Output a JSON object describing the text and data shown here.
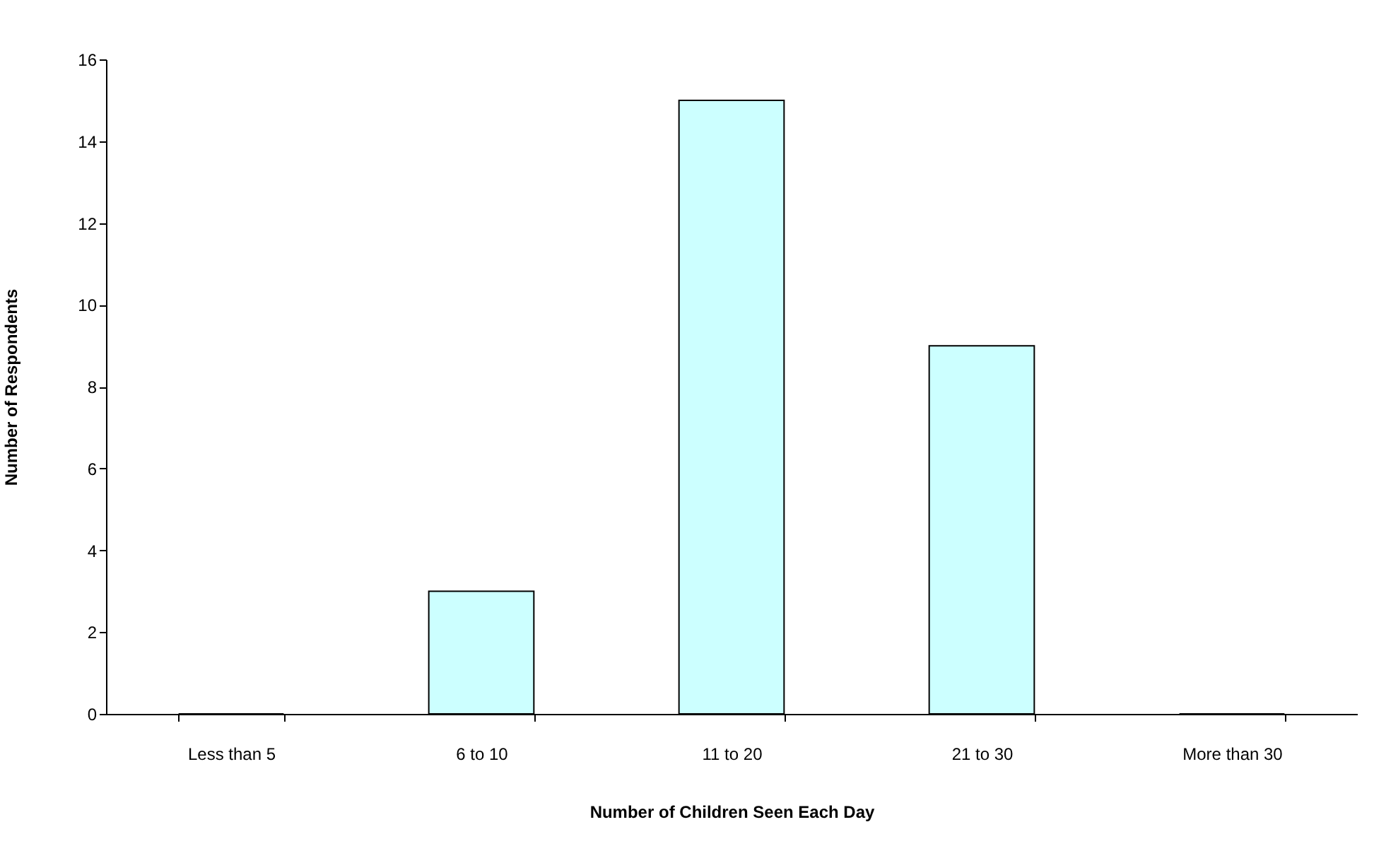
{
  "chart_data": {
    "type": "bar",
    "xlabel": "Number of Children Seen Each Day",
    "ylabel": "Number of Respondents",
    "categories": [
      "Less than 5",
      "6 to 10",
      "11 to 20",
      "21 to 30",
      "More than 30"
    ],
    "values": [
      0,
      3,
      15,
      9,
      0
    ],
    "color": "#ccffff",
    "ylim": [
      0,
      16
    ],
    "yticks": [
      0,
      2,
      4,
      6,
      8,
      10,
      12,
      14,
      16
    ],
    "grid": false,
    "legend": false
  }
}
